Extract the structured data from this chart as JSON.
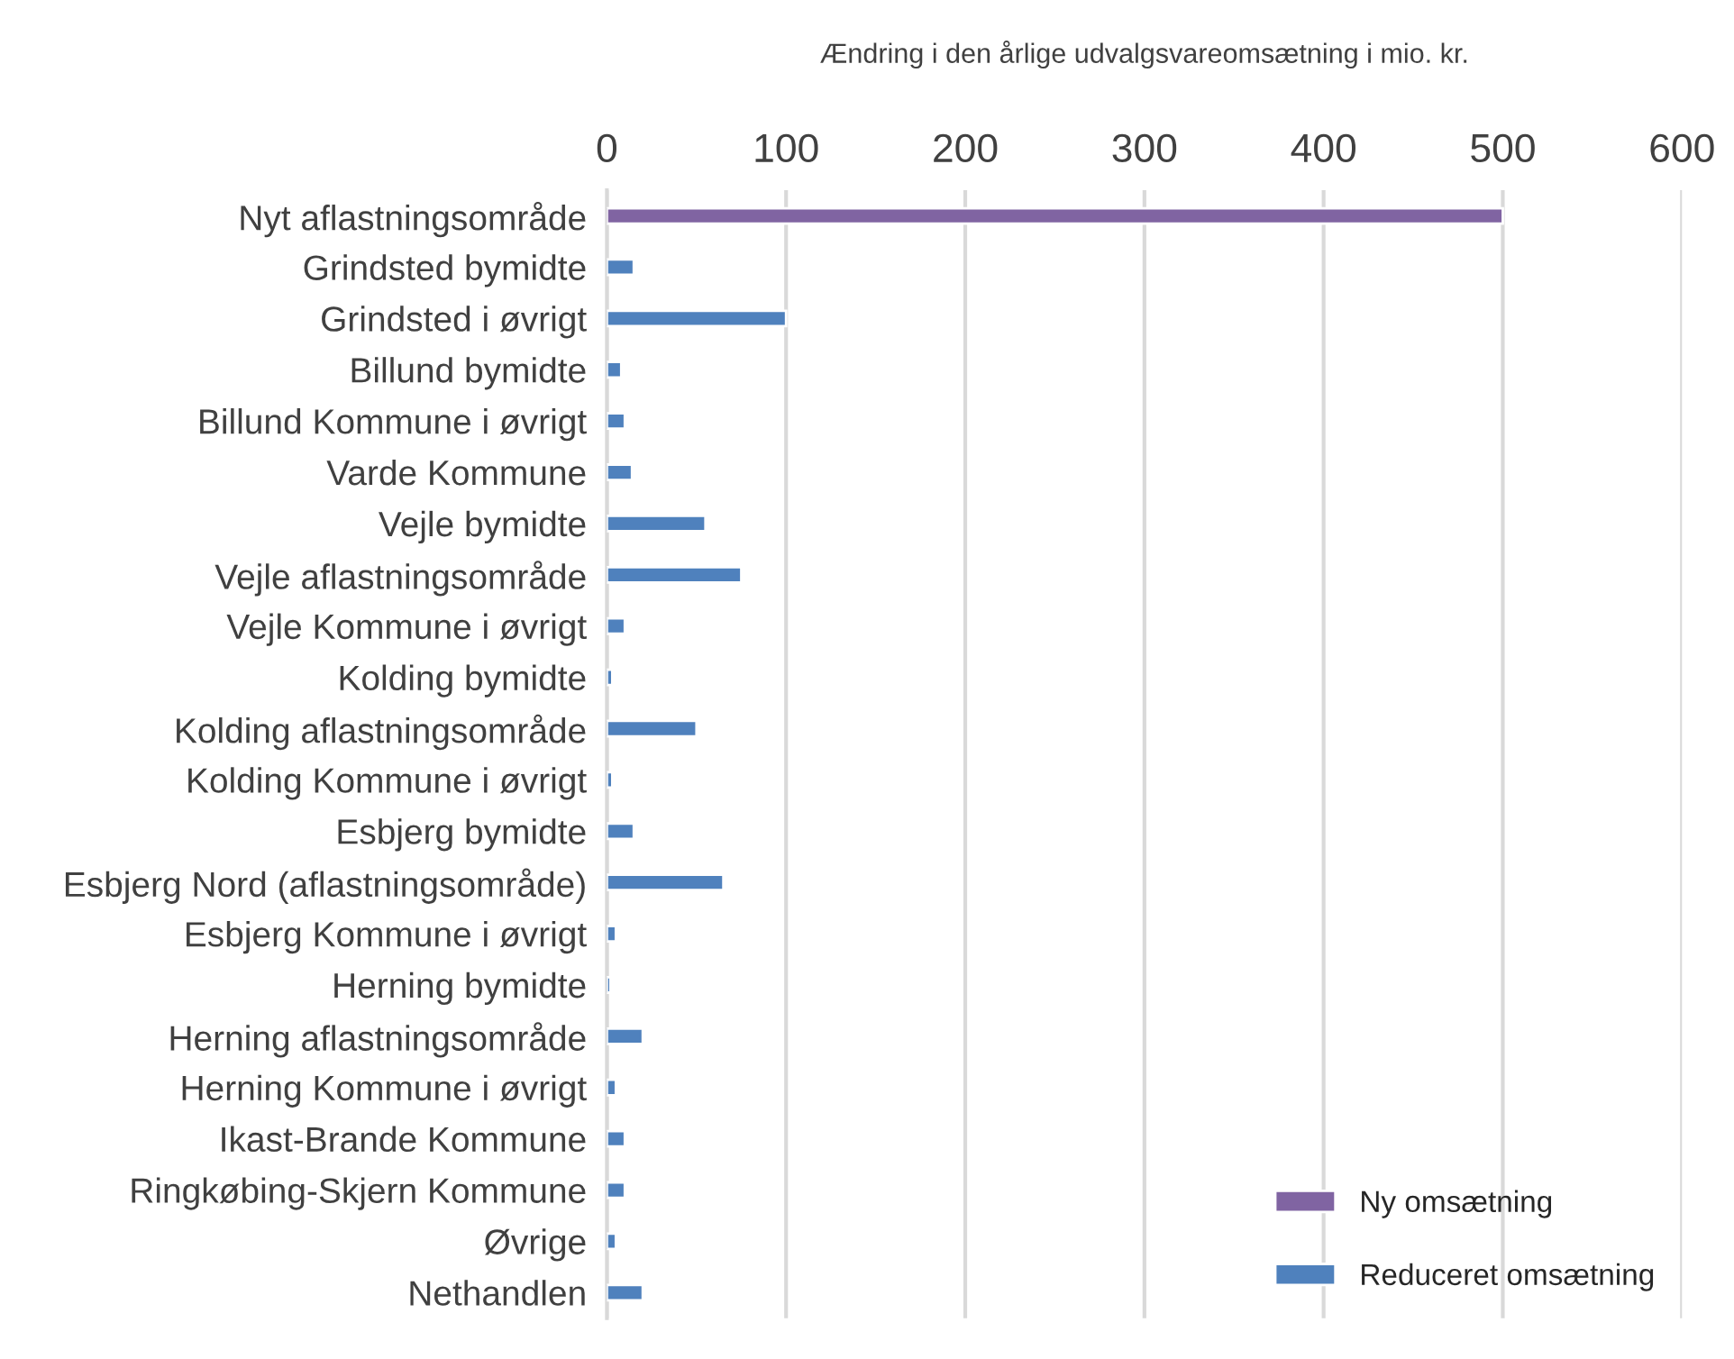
{
  "chart_data": {
    "type": "bar",
    "orientation": "horizontal",
    "stacked": true,
    "xlabel": "Ændring i den årlige udvalgsvareomsætning i mio. kr.",
    "categories": [
      "Nyt aflastningsområde",
      "Grindsted bymidte",
      "Grindsted i øvrigt",
      "Billund bymidte",
      "Billund Kommune i øvrigt",
      "Varde Kommune",
      "Vejle bymidte",
      "Vejle aflastningsområde",
      "Vejle Kommune i øvrigt",
      "Kolding bymidte",
      "Kolding aflastningsområde",
      "Kolding Kommune i øvrigt",
      "Esbjerg bymidte",
      "Esbjerg Nord (aflastningsområde)",
      "Esbjerg Kommune i øvrigt",
      "Herning bymidte",
      "Herning aflastningsområde",
      "Herning Kommune i øvrigt",
      "Ikast-Brande Kommune",
      "Ringkøbing-Skjern Kommune",
      "Øvrige",
      "Nethandlen"
    ],
    "series": [
      {
        "name": "Ny omsætning",
        "color": "#8064a2",
        "values": [
          500,
          null,
          null,
          null,
          null,
          null,
          null,
          null,
          null,
          null,
          null,
          null,
          null,
          null,
          null,
          null,
          null,
          null,
          null,
          null,
          null,
          null
        ]
      },
      {
        "name": "Reduceret omsætning",
        "color": "#4f81bd",
        "values": [
          null,
          15,
          100,
          8,
          10,
          14,
          55,
          75,
          10,
          3,
          50,
          3,
          15,
          65,
          5,
          2,
          20,
          5,
          10,
          10,
          5,
          20
        ]
      }
    ],
    "xlim": [
      0,
      600
    ],
    "xticks": [
      0,
      100,
      200,
      300,
      400,
      500,
      600
    ],
    "grid": "x",
    "legend": "bottom right"
  }
}
